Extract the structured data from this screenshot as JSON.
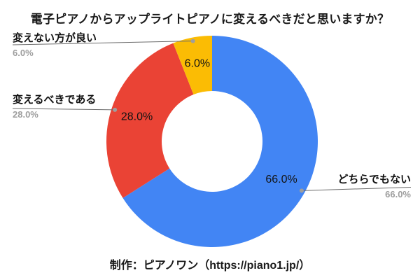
{
  "chart_data": {
    "type": "pie",
    "subtype": "donut",
    "title": "電子ピアノからアップライトピアノに変えるべきだと思いますか？",
    "slices": [
      {
        "label": "どちらでもない",
        "value": 66.0,
        "pct_label": "66.0%",
        "color": "#4285F4"
      },
      {
        "label": "変えるべきである",
        "value": 28.0,
        "pct_label": "28.0%",
        "color": "#EA4335"
      },
      {
        "label": "変えない方が良い",
        "value": 6.0,
        "pct_label": "6.0%",
        "color": "#FBBC04"
      }
    ],
    "start_angle_deg": 0,
    "direction": "clockwise",
    "hole_ratio": 0.477,
    "legend_position": "outside-callouts",
    "background_color": "#FFFFFF",
    "slice_percent_text_color": "#131313",
    "callout_label_color": "#111111",
    "callout_percent_color": "#9e9e9e",
    "leader_line_color": "#6b6b6b",
    "leader_dot_color": "#9e9e9e"
  },
  "caption": "制作：ピアノワン（https://piano1.jp/）"
}
